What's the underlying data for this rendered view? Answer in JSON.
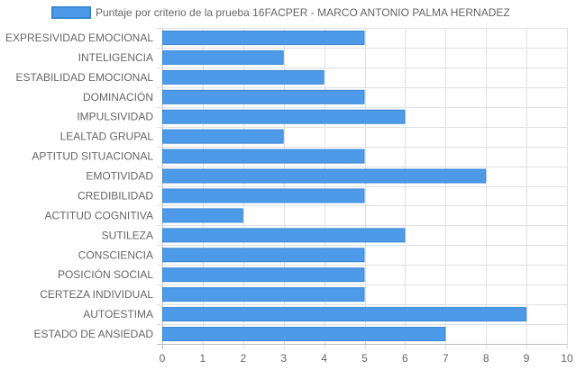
{
  "chart_data": {
    "type": "bar",
    "orientation": "horizontal",
    "legend": {
      "position": "top",
      "label": "Puntaje por criterio de la prueba 16FACPER - MARCO ANTONIO PALMA HERNADEZ"
    },
    "categories": [
      "EXPRESIVIDAD EMOCIONAL",
      "INTELIGENCIA",
      "ESTABILIDAD EMOCIONAL",
      "DOMINACIÓN",
      "IMPULSIVIDAD",
      "LEALTAD GRUPAL",
      "APTITUD SITUACIONAL",
      "EMOTIVIDAD",
      "CREDIBILIDAD",
      "ACTITUD COGNITIVA",
      "SUTILEZA",
      "CONSCIENCIA",
      "POSICIÓN SOCIAL",
      "CERTEZA INDIVIDUAL",
      "AUTOESTIMA",
      "ESTADO DE ANSIEDAD"
    ],
    "series": [
      {
        "name": "Puntaje por criterio de la prueba 16FACPER - MARCO ANTONIO PALMA HERNADEZ",
        "values": [
          5,
          3,
          4,
          5,
          6,
          3,
          5,
          8,
          5,
          2,
          6,
          5,
          5,
          5,
          9,
          7
        ],
        "color": "#4d9be8",
        "border_color": "#3a86d6"
      }
    ],
    "x_ticks": [
      "0",
      "1",
      "2",
      "3",
      "4",
      "5",
      "6",
      "7",
      "8",
      "9",
      "10"
    ],
    "xlim": [
      0,
      10
    ],
    "grid": true
  }
}
